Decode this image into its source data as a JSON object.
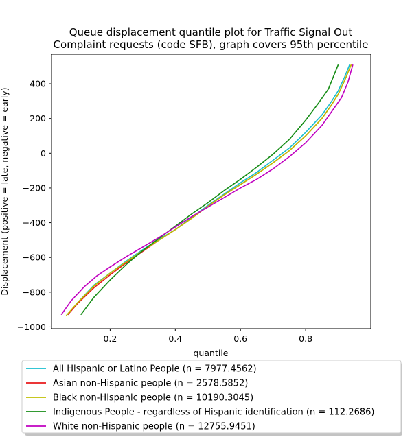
{
  "chart_data": {
    "type": "line",
    "title": [
      "Queue displacement quantile plot for Traffic Signal Out",
      "Complaint  requests (code SFB), graph covers 95th percentile"
    ],
    "xlabel": "quantile",
    "ylabel": "Displacement (positive = late, negative = early)",
    "xlim": [
      0.02,
      1.0
    ],
    "ylim": [
      -1010,
      570
    ],
    "xticks": [
      0.2,
      0.4,
      0.6,
      0.8
    ],
    "xtick_labels": [
      "0.2",
      "0.4",
      "0.6",
      "0.8"
    ],
    "yticks": [
      -1000,
      -800,
      -600,
      -400,
      -200,
      0,
      200,
      400
    ],
    "ytick_labels": [
      "−1000",
      "−800",
      "−600",
      "−400",
      "−200",
      "0",
      "200",
      "400"
    ],
    "grid": false,
    "legend_position": "bottom",
    "series": [
      {
        "name": "All Hispanic or Latino People (n = 7977.4562)",
        "color": "#17becf",
        "x": [
          0.07,
          0.1,
          0.15,
          0.2,
          0.25,
          0.3,
          0.35,
          0.4,
          0.45,
          0.5,
          0.55,
          0.6,
          0.65,
          0.7,
          0.75,
          0.8,
          0.85,
          0.88,
          0.9,
          0.92,
          0.935
        ],
        "y": [
          -930,
          -860,
          -760,
          -690,
          -620,
          -555,
          -495,
          -440,
          -370,
          -300,
          -235,
          -170,
          -110,
          -40,
          30,
          120,
          220,
          300,
          360,
          440,
          510
        ]
      },
      {
        "name": "Asian non-Hispanic people (n = 2578.5852)",
        "color": "#e8191c",
        "x": [
          0.07,
          0.1,
          0.15,
          0.2,
          0.25,
          0.3,
          0.35,
          0.4,
          0.45,
          0.5,
          0.55,
          0.6,
          0.65,
          0.7,
          0.75,
          0.8,
          0.85,
          0.88,
          0.9,
          0.92,
          0.94
        ],
        "y": [
          -930,
          -865,
          -775,
          -700,
          -630,
          -565,
          -500,
          -440,
          -375,
          -305,
          -240,
          -180,
          -120,
          -55,
          15,
          100,
          200,
          280,
          340,
          420,
          510
        ]
      },
      {
        "name": "Black non-Hispanic people (n = 10190.3045)",
        "color": "#bfbf00",
        "x": [
          0.065,
          0.1,
          0.15,
          0.2,
          0.25,
          0.3,
          0.35,
          0.4,
          0.45,
          0.5,
          0.55,
          0.6,
          0.65,
          0.7,
          0.75,
          0.8,
          0.85,
          0.88,
          0.9,
          0.92,
          0.94
        ],
        "y": [
          -935,
          -860,
          -765,
          -690,
          -625,
          -560,
          -500,
          -440,
          -375,
          -305,
          -240,
          -180,
          -120,
          -55,
          15,
          100,
          200,
          280,
          340,
          420,
          510
        ]
      },
      {
        "name": "Indigenous People - regardless of Hispanic identification (n = 112.2686)",
        "color": "#158c15",
        "x": [
          0.11,
          0.15,
          0.2,
          0.25,
          0.3,
          0.35,
          0.4,
          0.45,
          0.5,
          0.55,
          0.6,
          0.65,
          0.7,
          0.75,
          0.8,
          0.84,
          0.87,
          0.9
        ],
        "y": [
          -930,
          -830,
          -730,
          -640,
          -560,
          -490,
          -420,
          -350,
          -285,
          -215,
          -150,
          -80,
          -5,
          80,
          190,
          290,
          370,
          510
        ]
      },
      {
        "name": "White non-Hispanic people (n = 12755.9451)",
        "color": "#c000c0",
        "x": [
          0.05,
          0.08,
          0.12,
          0.16,
          0.2,
          0.25,
          0.3,
          0.35,
          0.4,
          0.45,
          0.5,
          0.55,
          0.6,
          0.65,
          0.7,
          0.75,
          0.8,
          0.85,
          0.88,
          0.91,
          0.93,
          0.945
        ],
        "y": [
          -930,
          -850,
          -770,
          -705,
          -655,
          -595,
          -540,
          -485,
          -425,
          -365,
          -310,
          -255,
          -200,
          -150,
          -90,
          -20,
          60,
          160,
          240,
          320,
          410,
          510
        ]
      }
    ]
  }
}
